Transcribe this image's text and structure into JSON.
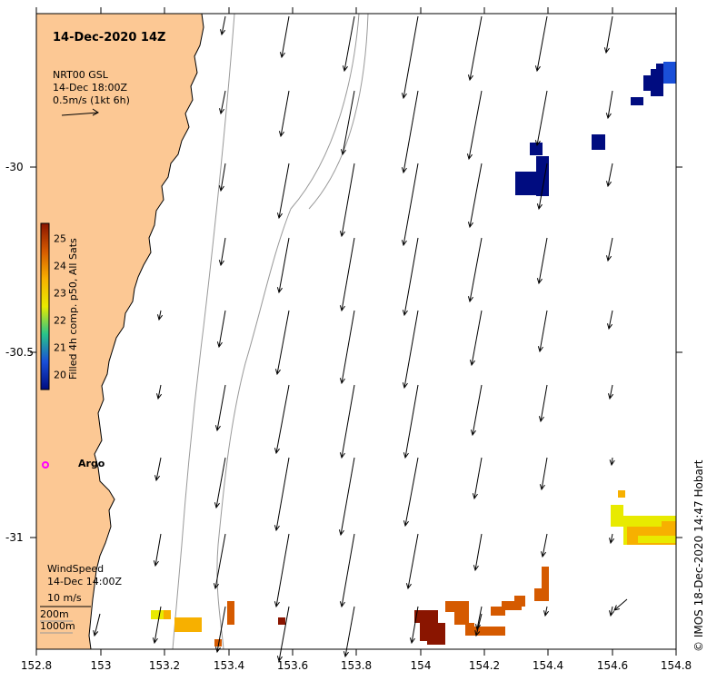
{
  "title": "14-Dec-2020 14Z",
  "product": {
    "line1": "NRT00 GSL",
    "line2": "14-Dec 18:00Z",
    "line3": "0.5m/s (1kt 6h)"
  },
  "colorbar": {
    "label": "Filled 4h comp. p50, All Sats",
    "ticks": [
      "25",
      "24",
      "23",
      "22",
      "21",
      "20"
    ],
    "colors": [
      "#8a1500",
      "#d55a00",
      "#f7b000",
      "#e8ea00",
      "#29c48a",
      "#1a4fd8",
      "#000c80"
    ]
  },
  "argo": {
    "label": "Argo",
    "color": "#ff00ff"
  },
  "wind": {
    "line1": "WindSpeed",
    "line2": "14-Dec 14:00Z",
    "line3": "10 m/s"
  },
  "isobaths": {
    "label1": "200m",
    "label2": "1000m"
  },
  "x_ticks": [
    "152.8",
    "153",
    "153.2",
    "153.4",
    "153.6",
    "153.8",
    "154",
    "154.2",
    "154.4",
    "154.6",
    "154.8"
  ],
  "y_ticks": [
    "-30",
    "-30.5",
    "-31"
  ],
  "credit": "IMOS 18-Dec-2020 14:47 Hobart",
  "colors": {
    "land": "#fcc894",
    "coast": "#000000",
    "frame": "#000000",
    "contour": "#999999"
  }
}
